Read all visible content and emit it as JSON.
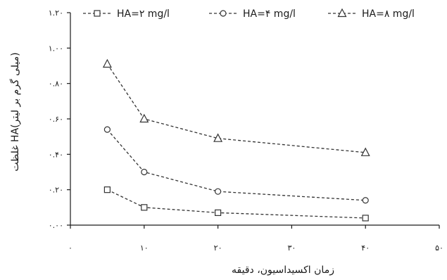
{
  "chart_data": {
    "type": "line",
    "title": "",
    "xlabel": "زمان اکسیداسیون، دقیقه",
    "ylabel": "غلظت HA(میلی گرم بر لیتر)",
    "xlim": [
      0,
      50
    ],
    "ylim": [
      0,
      1.2
    ],
    "x_ticks": [
      0,
      10,
      20,
      30,
      40,
      50
    ],
    "x_tick_labels": [
      "۰",
      "۱۰",
      "۲۰",
      "۳۰",
      "۴۰",
      "۵۰"
    ],
    "y_ticks": [
      0,
      0.2,
      0.4,
      0.6,
      0.8,
      1.0,
      1.2
    ],
    "y_tick_labels": [
      "۰.۰۰",
      "۰.۲۰",
      "۰.۴۰",
      "۰.۶۰",
      "۰.۸۰",
      "۱.۰۰",
      "۱.۲۰"
    ],
    "x": [
      5,
      10,
      20,
      40
    ],
    "legend_position": "top",
    "grid": false,
    "series": [
      {
        "name": "HA=۲ mg/l",
        "marker": "square",
        "values": [
          0.2,
          0.1,
          0.07,
          0.04
        ]
      },
      {
        "name": "HA=۴ mg/l",
        "marker": "circle",
        "values": [
          0.54,
          0.3,
          0.19,
          0.14
        ]
      },
      {
        "name": "HA=۸ mg/l",
        "marker": "triangle",
        "values": [
          0.91,
          0.6,
          0.49,
          0.41
        ]
      }
    ]
  }
}
